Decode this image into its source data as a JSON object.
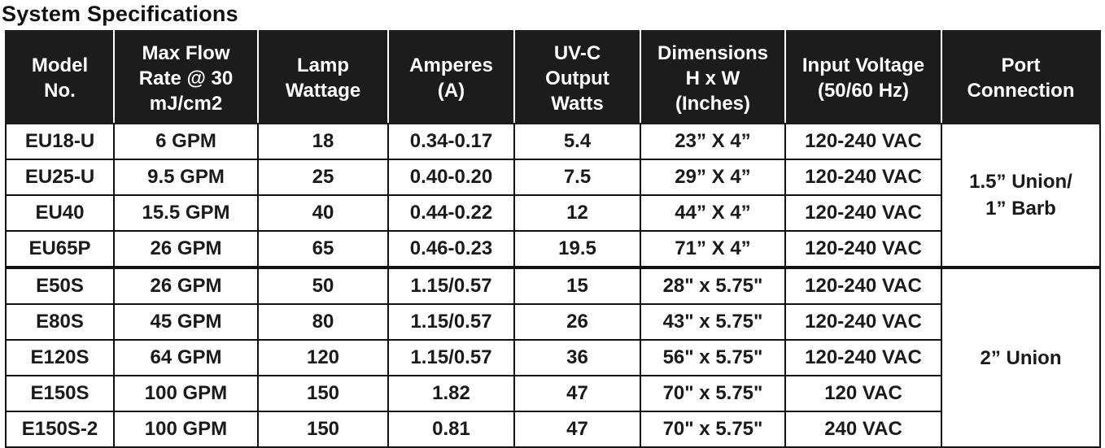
{
  "title": "System Specifications",
  "columns": [
    {
      "lines": [
        "Model",
        "No."
      ]
    },
    {
      "lines": [
        "Max Flow",
        "Rate @ 30",
        "mJ/cm2"
      ]
    },
    {
      "lines": [
        "Lamp",
        "Wattage"
      ]
    },
    {
      "lines": [
        "Amperes",
        "(A)"
      ]
    },
    {
      "lines": [
        "UV-C",
        "Output",
        "Watts"
      ]
    },
    {
      "lines": [
        "Dimensions",
        "H x W",
        "(Inches)"
      ]
    },
    {
      "lines": [
        "Input Voltage",
        "(50/60 Hz)"
      ]
    },
    {
      "lines": [
        "Port",
        "Connection"
      ]
    }
  ],
  "rows": [
    {
      "model": "EU18-U",
      "flow": "6 GPM",
      "wattage": "18",
      "amperes": "0.34-0.17",
      "uvc": "5.4",
      "dimensions": "23” X 4”",
      "voltage": "120-240 VAC"
    },
    {
      "model": "EU25-U",
      "flow": "9.5 GPM",
      "wattage": "25",
      "amperes": "0.40-0.20",
      "uvc": "7.5",
      "dimensions": "29” X 4”",
      "voltage": "120-240 VAC"
    },
    {
      "model": "EU40",
      "flow": "15.5 GPM",
      "wattage": "40",
      "amperes": "0.44-0.22",
      "uvc": "12",
      "dimensions": "44” X 4”",
      "voltage": "120-240 VAC"
    },
    {
      "model": "EU65P",
      "flow": "26 GPM",
      "wattage": "65",
      "amperes": "0.46-0.23",
      "uvc": "19.5",
      "dimensions": "71” X 4”",
      "voltage": "120-240 VAC"
    },
    {
      "model": "E50S",
      "flow": "26 GPM",
      "wattage": "50",
      "amperes": "1.15/0.57",
      "uvc": "15",
      "dimensions": "28\" x 5.75\"",
      "voltage": "120-240 VAC"
    },
    {
      "model": "E80S",
      "flow": "45 GPM",
      "wattage": "80",
      "amperes": "1.15/0.57",
      "uvc": "26",
      "dimensions": "43\" x 5.75\"",
      "voltage": "120-240 VAC"
    },
    {
      "model": "E120S",
      "flow": "64 GPM",
      "wattage": "120",
      "amperes": "1.15/0.57",
      "uvc": "36",
      "dimensions": "56\" x 5.75\"",
      "voltage": "120-240 VAC"
    },
    {
      "model": "E150S",
      "flow": "100 GPM",
      "wattage": "150",
      "amperes": "1.82",
      "uvc": "47",
      "dimensions": "70\" x 5.75\"",
      "voltage": "120 VAC"
    },
    {
      "model": "E150S-2",
      "flow": "100 GPM",
      "wattage": "150",
      "amperes": "0.81",
      "uvc": "47",
      "dimensions": "70\" x 5.75\"",
      "voltage": "240 VAC"
    }
  ],
  "port_groups": [
    {
      "lines": [
        "1.5” Union/",
        "1” Barb"
      ]
    },
    {
      "lines": [
        "2” Union"
      ]
    }
  ]
}
